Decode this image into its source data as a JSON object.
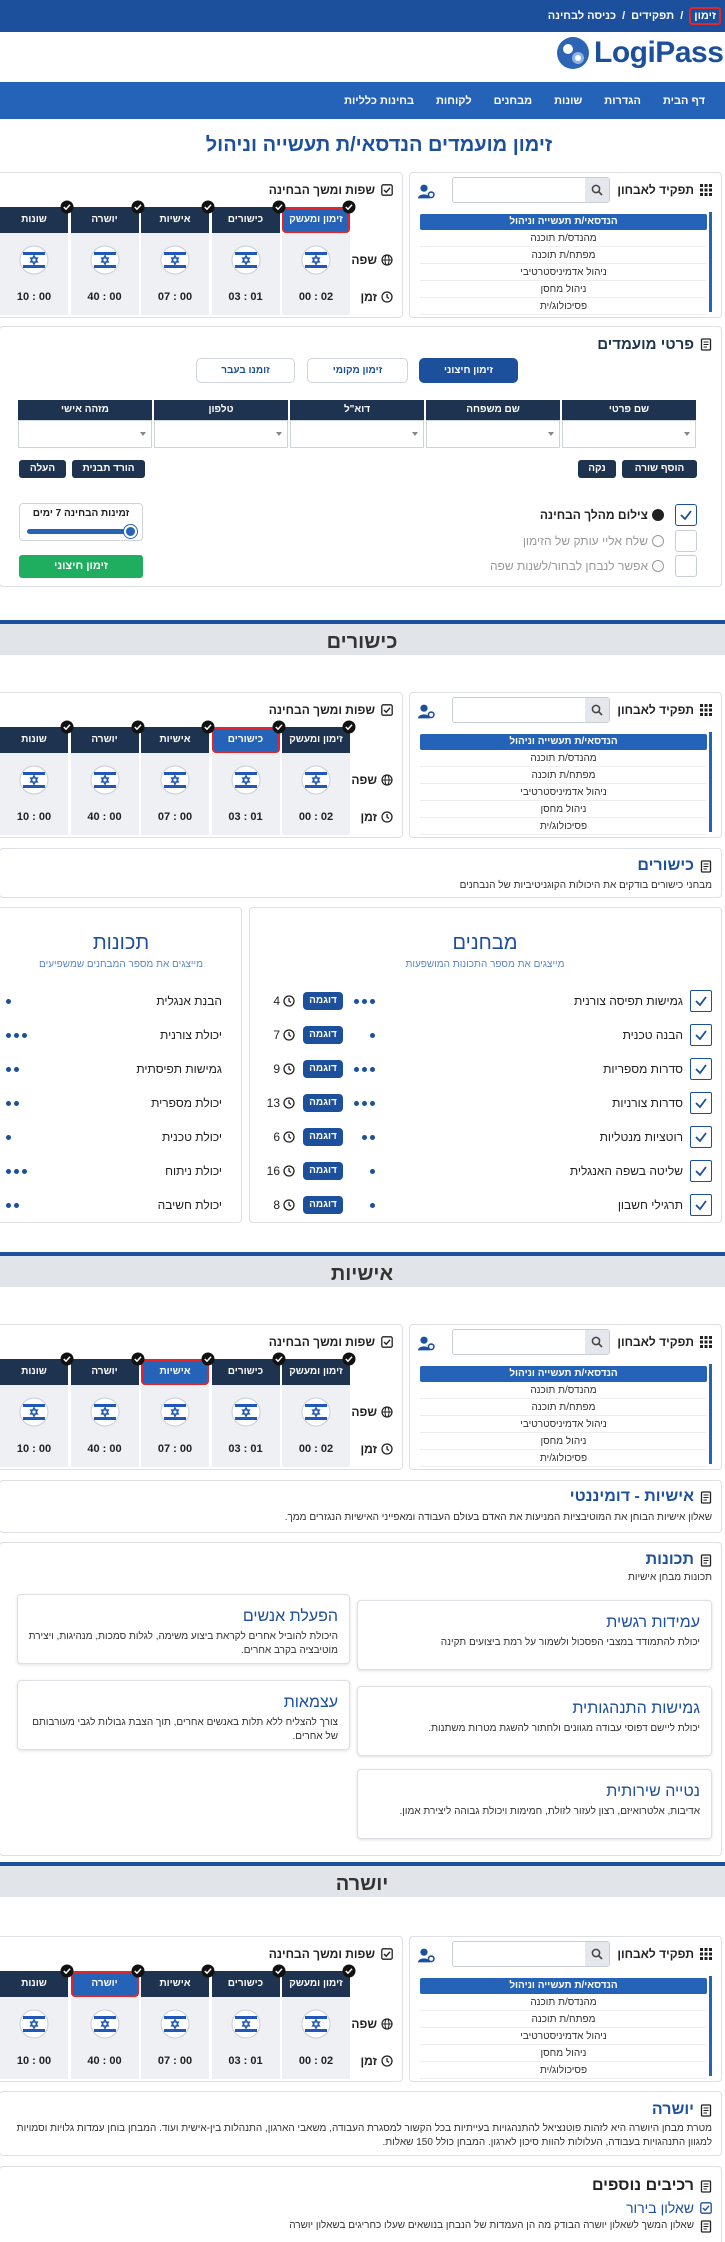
{
  "breadcrumb": [
    "זימון",
    "תפקידים",
    "כניסה לבחינה"
  ],
  "breadcrumb_separator": "/",
  "logo": "LogiPass",
  "nav": [
    "דף הבית",
    "הגדרות",
    "שונות",
    "מבחנים",
    "לקוחות",
    "בחינות כלליות"
  ],
  "title": "זימון מועמדים הנדסאי/ת תעשייה וניהול",
  "role_panel": {
    "label": "תפקיד לאבחון",
    "roles": [
      "הנדסאי/ת תעשייה וניהול",
      "מהנדס/ת תוכנה",
      "מפתח/ת תוכנה",
      "ניהול אדמיניסטרטיבי",
      "ניהול מחסן",
      "פסיכולוג/ית"
    ]
  },
  "exam_panel": {
    "label": "שפות ומשך הבחינה",
    "row_labels": [
      "שפה",
      "זמן"
    ],
    "tabs": [
      {
        "name": "זימון ומעשק",
        "time": "02 : 00"
      },
      {
        "name": "כישורים",
        "time": "01 : 03"
      },
      {
        "name": "אישיות",
        "time": "00 : 07"
      },
      {
        "name": "יושרה",
        "time": "00 : 40"
      },
      {
        "name": "שונות",
        "time": "00 : 10"
      }
    ]
  },
  "candidates": {
    "title": "פרטי מועמדים",
    "tabs": [
      "זימון חיצוני",
      "זימון מקומי",
      "זומנו בעבר"
    ],
    "columns": [
      "שם פרטי",
      "שם משפחה",
      "דוא\"ל",
      "טלפון",
      "מזהה אישי"
    ],
    "add_row": "הוסף שורה",
    "clear": "נקה",
    "download": "הורד תבנית",
    "upload": "העלה",
    "options": [
      {
        "label": "צילום מהלך הבחינה",
        "checked": true
      },
      {
        "label": "שלח אליי עותק של הזימון",
        "checked": false
      },
      {
        "label": "אפשר לנבחן לבחור/לשנות שפה",
        "checked": false
      }
    ],
    "availability": "זמינות הבחינה 7 ימים",
    "submit": "זימון חיצוני"
  },
  "sections": [
    "כישורים",
    "אישיות",
    "יושרה"
  ],
  "skills": {
    "title": "כישורים",
    "description": "מבחני כישורים בודקים את היכולות הקוגניטיביות של הנבחנים",
    "tests_title": "מבחנים",
    "tests_subtitle": "מייצגים את מספר התכונות המושפעות",
    "example_label": "דוגמה",
    "tests": [
      {
        "name": "גמישות תפיסה צורנית",
        "count": 4,
        "dots": 3
      },
      {
        "name": "הבנה טכנית",
        "count": 7,
        "dots": 1
      },
      {
        "name": "סדרות מספריות",
        "count": 9,
        "dots": 3
      },
      {
        "name": "סדרות צורניות",
        "count": 13,
        "dots": 3
      },
      {
        "name": "רוטציות מנטליות",
        "count": 6,
        "dots": 2
      },
      {
        "name": "שליטה בשפה האנגלית",
        "count": 16,
        "dots": 1
      },
      {
        "name": "תרגילי חשבון",
        "count": 8,
        "dots": 1
      }
    ],
    "traits_title": "תכונות",
    "traits_subtitle": "מייצגים את מספר המבחנים שמשפיעים",
    "traits": [
      {
        "name": "הבנת אנגלית",
        "dots": 1
      },
      {
        "name": "יכולת צורנית",
        "dots": 3
      },
      {
        "name": "גמישות תפיסתית",
        "dots": 2
      },
      {
        "name": "יכולת מספרית",
        "dots": 2
      },
      {
        "name": "יכולת טכנית",
        "dots": 1
      },
      {
        "name": "יכולת ניתוח",
        "dots": 3
      },
      {
        "name": "יכולת חשיבה",
        "dots": 2
      }
    ]
  },
  "personality": {
    "title": "אישיות - דומיננטי",
    "description": "שאלון אישיות הבוחן את המוטיבציות המניעות את האדם בעולם העבודה ומאפייני האישיות הנגזרים ממך.",
    "traits_title": "תכונות",
    "traits_subtitle": "תכונות מבחן אישיות",
    "traits": [
      {
        "name": "עמידות רגשית",
        "description": "יכולת להתמודד במצבי הפסכול ולשמור על רמת ביצועים תקינה"
      },
      {
        "name": "הפעלת אנשים",
        "description": "היכולת להוביל אחרים לקראת ביצוע משימה, לגלות סמכות, מנהיגות, ויצירת מוטיבציה בקרב אחרים."
      },
      {
        "name": "גמישות התנהגותית",
        "description": "יכולת ליישם דפוסי עבודה מגוונים ולחתור להשגת מטרות משתנות."
      },
      {
        "name": "עצמאות",
        "description": "צורך להצליח ללא תלות באנשים אחרים, תוך הצבת גבולות לגבי מעורבותם של אחרים."
      },
      {
        "name": "נטייה שירותית",
        "description": "אדיבות, אלטרואיזם, רצון לעזור לזולת, חמימות ויכולת גבוהה ליצירת אמון."
      }
    ]
  },
  "integrity": {
    "title": "יושרה",
    "description": "מטרת מבחן היושרה היא לזהות פוטנציאל להתנהגויות בעייתיות בכל הקשור למסגרת העבודה, משאבי הארגון, התנהלות בין-אישית ועוד. המבחן בוחן עמדות גלויות וסמויות למגוון התנהגויות בעבודה, העלולות להוות סיכון לארגון. המבחן כולל 150 שאלות.",
    "extras_title": "רכיבים נוספים",
    "extras": [
      {
        "name": "שאלון בירור",
        "description": "שאלון המשך לשאלון יושרה הבודק מה הן העמדות של הנבחן בנושאים שעלו כחריגים בשאלון יושרה"
      }
    ]
  }
}
